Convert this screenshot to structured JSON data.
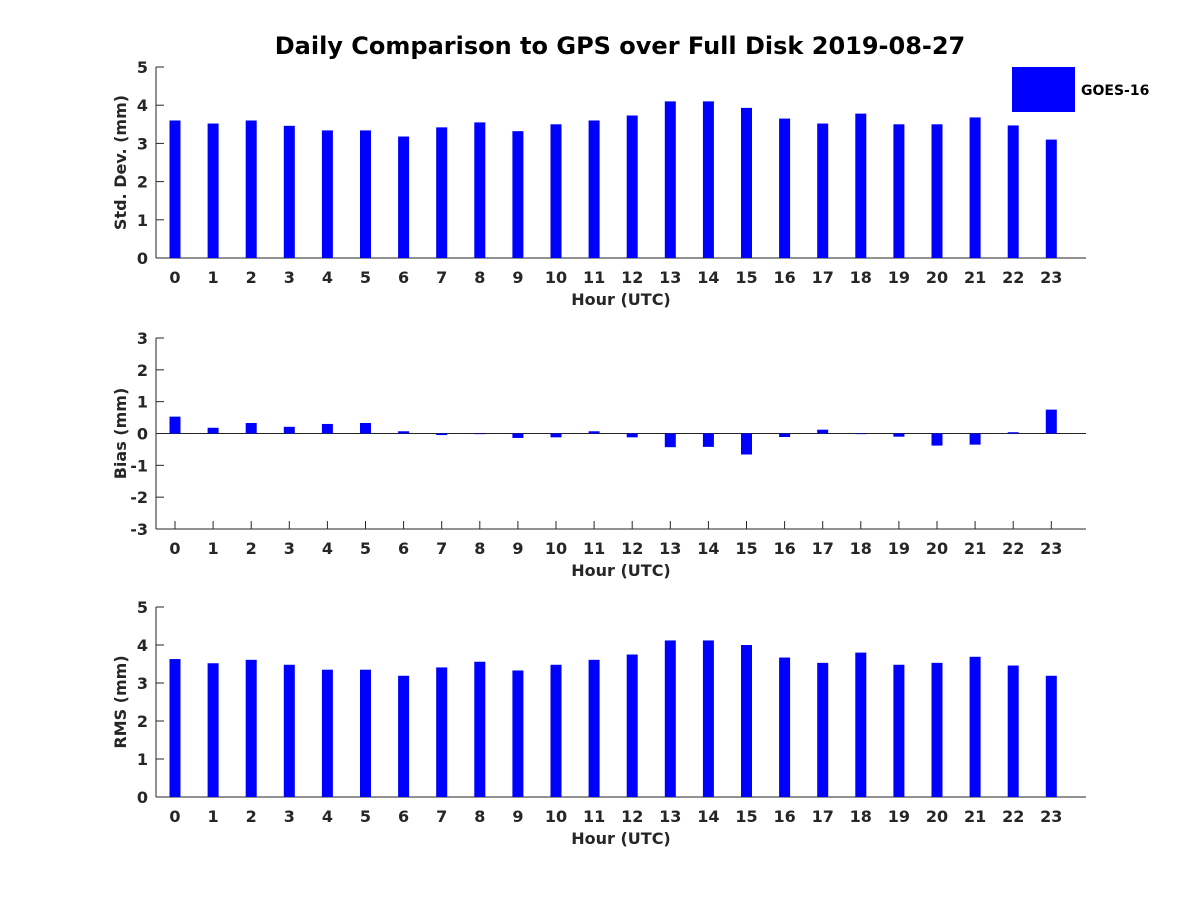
{
  "chart_data": {
    "type": "bar",
    "title": "Daily Comparison to GPS over Full Disk 2019-08-27",
    "color": "#0000ff",
    "legend": {
      "label": "GOES-16",
      "placement": "top-right"
    },
    "categories": [
      "0",
      "1",
      "2",
      "3",
      "4",
      "5",
      "6",
      "7",
      "8",
      "9",
      "10",
      "11",
      "12",
      "13",
      "14",
      "15",
      "16",
      "17",
      "18",
      "19",
      "20",
      "21",
      "22",
      "23"
    ],
    "panels": [
      {
        "id": "std",
        "ylabel": "Std. Dev. (mm)",
        "xlabel": "Hour (UTC)",
        "ylim": [
          0,
          5
        ],
        "yticks": [
          0,
          1,
          2,
          3,
          4,
          5
        ],
        "series": [
          {
            "name": "GOES-16",
            "values": [
              3.6,
              3.52,
              3.6,
              3.46,
              3.34,
              3.34,
              3.18,
              3.42,
              3.55,
              3.32,
              3.5,
              3.6,
              3.73,
              4.1,
              4.1,
              3.93,
              3.65,
              3.52,
              3.78,
              3.5,
              3.5,
              3.68,
              3.47,
              3.1
            ]
          }
        ]
      },
      {
        "id": "bias",
        "ylabel": "Bias (mm)",
        "xlabel": "Hour (UTC)",
        "ylim": [
          -3,
          3
        ],
        "yticks": [
          -3,
          -2,
          -1,
          0,
          1,
          2,
          3
        ],
        "series": [
          {
            "name": "GOES-16",
            "values": [
              0.53,
              0.18,
              0.33,
              0.21,
              0.3,
              0.33,
              0.07,
              -0.05,
              -0.02,
              -0.14,
              -0.12,
              0.07,
              -0.12,
              -0.43,
              -0.42,
              -0.66,
              -0.11,
              0.12,
              -0.02,
              -0.1,
              -0.38,
              -0.35,
              0.04,
              0.75
            ]
          }
        ]
      },
      {
        "id": "rms",
        "ylabel": "RMS (mm)",
        "xlabel": "Hour (UTC)",
        "ylim": [
          0,
          5
        ],
        "yticks": [
          0,
          1,
          2,
          3,
          4,
          5
        ],
        "series": [
          {
            "name": "GOES-16",
            "values": [
              3.63,
              3.52,
              3.61,
              3.48,
              3.35,
              3.35,
              3.19,
              3.41,
              3.56,
              3.33,
              3.48,
              3.61,
              3.75,
              4.12,
              4.12,
              4.0,
              3.67,
              3.53,
              3.8,
              3.48,
              3.53,
              3.69,
              3.46,
              3.19
            ]
          }
        ]
      }
    ]
  }
}
